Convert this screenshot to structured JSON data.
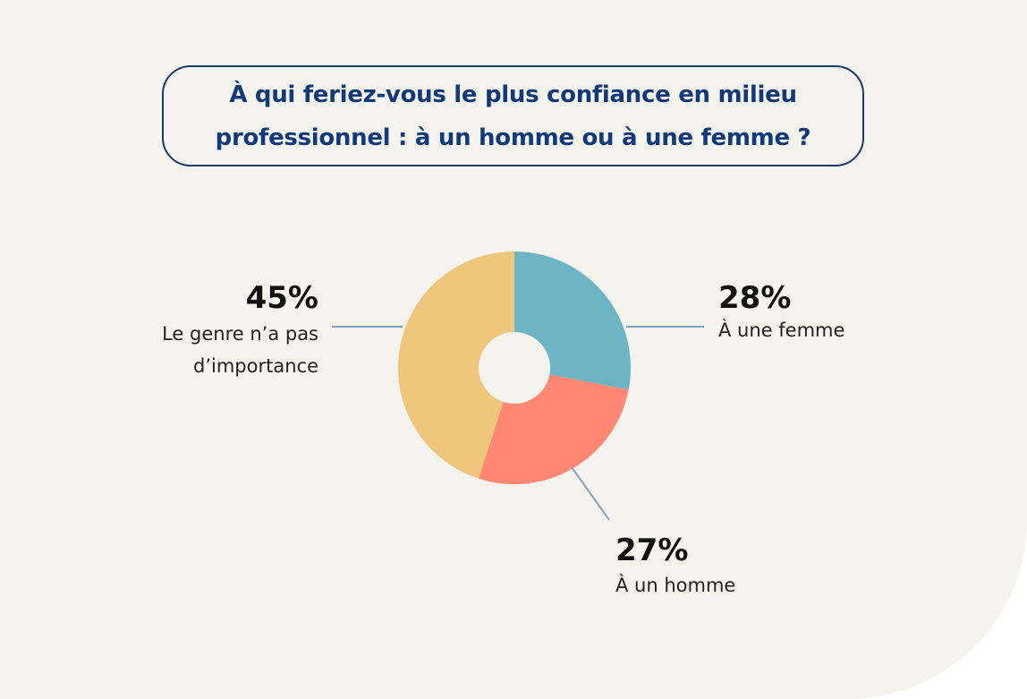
{
  "title": "À qui feriez-vous le plus confiance en milieu professionnel : à un homme ou à une femme ?",
  "chart_data": {
    "type": "pie",
    "donut": true,
    "title": "À qui feriez-vous le plus confiance en milieu professionnel : à un homme ou à une femme ?",
    "categories": [
      "À une femme",
      "À un homme",
      "Le genre n’a pas d’importance"
    ],
    "values": [
      28,
      27,
      45
    ],
    "value_labels": [
      "28%",
      "27%",
      "45%"
    ],
    "colors": [
      "#6db5c4",
      "#ff8773",
      "#efc77c"
    ],
    "label_lines": [
      [
        "À une femme"
      ],
      [
        "À un homme"
      ],
      [
        "Le genre n’a pas",
        "d’importance"
      ]
    ],
    "legend": "none"
  }
}
